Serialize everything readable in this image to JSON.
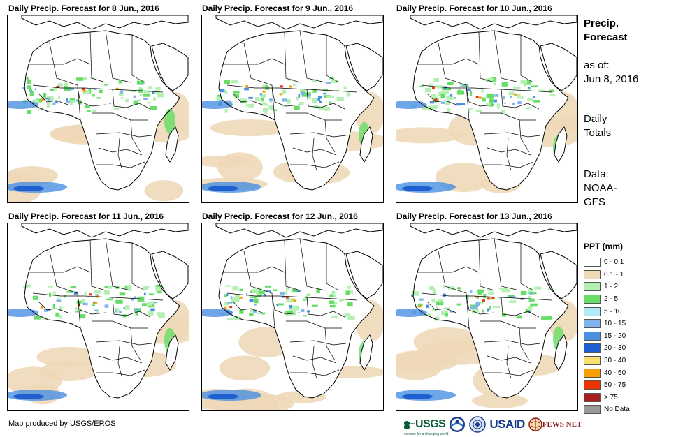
{
  "panels": [
    {
      "title": "Daily Precip. Forecast for 8 Jun., 2016"
    },
    {
      "title": "Daily Precip. Forecast for 9 Jun., 2016"
    },
    {
      "title": "Daily Precip. Forecast for 10 Jun., 2016"
    },
    {
      "title": "Daily Precip. Forecast for 11 Jun., 2016"
    },
    {
      "title": "Daily Precip. Forecast for 12 Jun., 2016"
    },
    {
      "title": "Daily Precip. Forecast for 13 Jun., 2016"
    }
  ],
  "sidebar": {
    "title_line1": "Precip.",
    "title_line2": "Forecast",
    "asof_label": "as of:",
    "asof_date": "Jun 8, 2016",
    "totals_line1": "Daily",
    "totals_line2": "Totals",
    "data_line1": "Data:",
    "data_line2": "NOAA-",
    "data_line3": "GFS"
  },
  "legend": {
    "title": "PPT (mm)",
    "items": [
      {
        "label": "0 - 0.1",
        "color": "#ffffff"
      },
      {
        "label": "0.1 - 1",
        "color": "#eed8b8"
      },
      {
        "label": "1 - 2",
        "color": "#b4f0b4"
      },
      {
        "label": "2 - 5",
        "color": "#66dd66"
      },
      {
        "label": "5 - 10",
        "color": "#b0ecf5"
      },
      {
        "label": "10 - 15",
        "color": "#7fb4ee"
      },
      {
        "label": "15 - 20",
        "color": "#4a90e2"
      },
      {
        "label": "20 - 30",
        "color": "#1f5fd0"
      },
      {
        "label": "30 - 40",
        "color": "#f8e070"
      },
      {
        "label": "40 - 50",
        "color": "#f5a000"
      },
      {
        "label": "50 - 75",
        "color": "#ee3300"
      },
      {
        "label": "> 75",
        "color": "#a51f1f"
      },
      {
        "label": "No Data",
        "color": "#999999"
      }
    ]
  },
  "footer": {
    "credit": "Map produced by USGS/EROS",
    "logos": {
      "usgs": "USGS",
      "usgs_tagline": "science for a changing world",
      "usaid": "USAID",
      "fewsnet": "FEWS NET"
    }
  }
}
